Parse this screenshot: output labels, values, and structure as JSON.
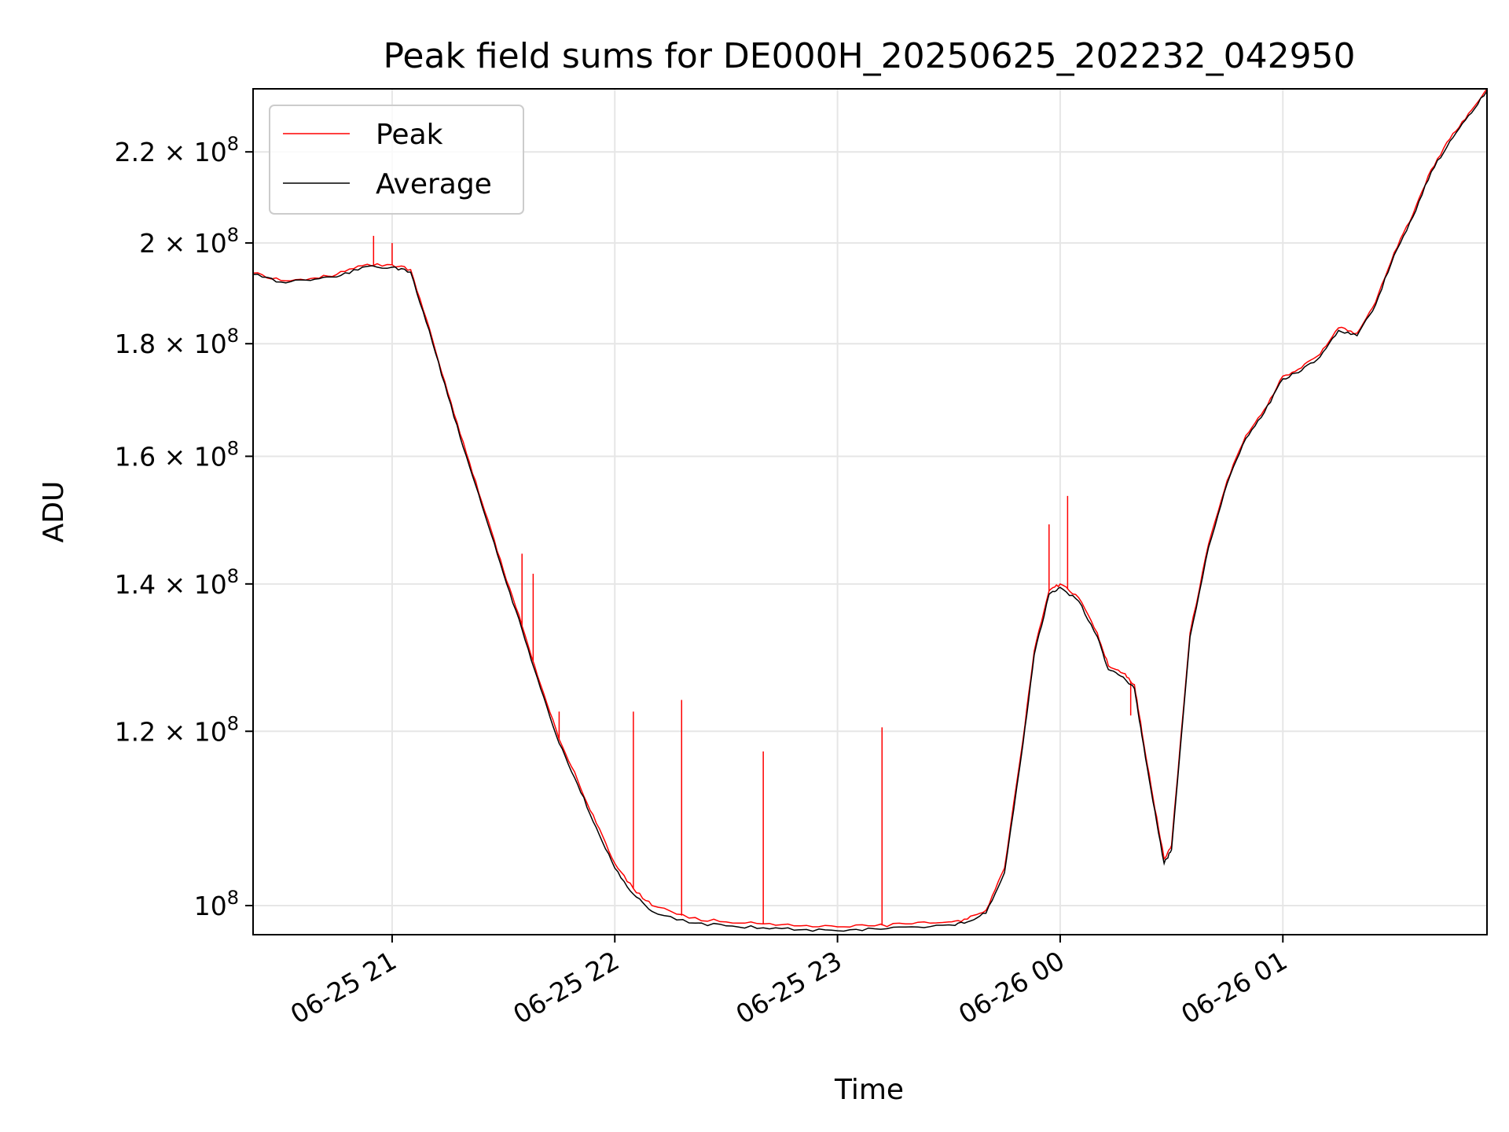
{
  "chart_data": {
    "type": "line",
    "title": "Peak field sums for DE000H_20250625_202232_042950",
    "xlabel": "Time",
    "ylabel": "ADU",
    "y_scale": "log",
    "grid": true,
    "legend_position": "upper-left",
    "xlim": [
      "2025-06-25 20:22:32",
      "2025-06-26 01:55:00"
    ],
    "ylim": [
      97000000,
      235000000
    ],
    "x_ticks": [
      {
        "value": "2025-06-25 21:00",
        "label": "06-25 21"
      },
      {
        "value": "2025-06-25 22:00",
        "label": "06-25 22"
      },
      {
        "value": "2025-06-25 23:00",
        "label": "06-25 23"
      },
      {
        "value": "2025-06-26 00:00",
        "label": "06-26 00"
      },
      {
        "value": "2025-06-26 01:00",
        "label": "06-26 01"
      }
    ],
    "y_ticks": [
      {
        "value": 100000000,
        "label_mantissa": "",
        "label_base": "10",
        "label_exp": "8"
      },
      {
        "value": 120000000,
        "label_mantissa": "1.2 × ",
        "label_base": "10",
        "label_exp": "8"
      },
      {
        "value": 140000000,
        "label_mantissa": "1.4 × ",
        "label_base": "10",
        "label_exp": "8"
      },
      {
        "value": 160000000,
        "label_mantissa": "1.6 × ",
        "label_base": "10",
        "label_exp": "8"
      },
      {
        "value": 180000000,
        "label_mantissa": "1.8 × ",
        "label_base": "10",
        "label_exp": "8"
      },
      {
        "value": 200000000,
        "label_mantissa": "2 × ",
        "label_base": "10",
        "label_exp": "8"
      },
      {
        "value": 220000000,
        "label_mantissa": "2.2 × ",
        "label_base": "10",
        "label_exp": "8"
      }
    ],
    "series": [
      {
        "name": "Peak",
        "color": "#ff0000",
        "x": [
          "2025-06-25 20:22:32",
          "2025-06-25 20:30",
          "2025-06-25 20:38",
          "2025-06-25 20:45",
          "2025-06-25 20:52",
          "2025-06-25 21:00",
          "2025-06-25 21:05",
          "2025-06-25 21:10",
          "2025-06-25 21:15",
          "2025-06-25 21:20",
          "2025-06-25 21:25",
          "2025-06-25 21:30",
          "2025-06-25 21:35",
          "2025-06-25 21:40",
          "2025-06-25 21:45",
          "2025-06-25 21:50",
          "2025-06-25 21:55",
          "2025-06-25 22:00",
          "2025-06-25 22:05",
          "2025-06-25 22:10",
          "2025-06-25 22:20",
          "2025-06-25 22:30",
          "2025-06-25 22:40",
          "2025-06-25 22:50",
          "2025-06-25 23:00",
          "2025-06-25 23:10",
          "2025-06-25 23:20",
          "2025-06-25 23:30",
          "2025-06-25 23:35",
          "2025-06-25 23:40",
          "2025-06-25 23:45",
          "2025-06-25 23:50",
          "2025-06-25 23:53",
          "2025-06-25 23:57",
          "2025-06-26 00:00",
          "2025-06-26 00:05",
          "2025-06-26 00:10",
          "2025-06-26 00:13",
          "2025-06-26 00:17",
          "2025-06-26 00:20",
          "2025-06-26 00:22",
          "2025-06-26 00:25",
          "2025-06-26 00:28",
          "2025-06-26 00:30",
          "2025-06-26 00:35",
          "2025-06-26 00:40",
          "2025-06-26 00:45",
          "2025-06-26 00:50",
          "2025-06-26 00:55",
          "2025-06-26 01:00",
          "2025-06-26 01:05",
          "2025-06-26 01:10",
          "2025-06-26 01:15",
          "2025-06-26 01:20",
          "2025-06-26 01:25",
          "2025-06-26 01:30",
          "2025-06-26 01:35",
          "2025-06-26 01:40",
          "2025-06-26 01:45",
          "2025-06-26 01:50",
          "2025-06-26 01:55"
        ],
        "values": [
          193800000,
          192300000,
          192700000,
          193500000,
          195300000,
          195500000,
          194500000,
          183000000,
          171000000,
          160500000,
          151000000,
          142000000,
          134000000,
          126000000,
          119000000,
          114000000,
          109000000,
          104500000,
          101800000,
          100000000,
          98700000,
          98300000,
          98100000,
          97900000,
          97800000,
          97900000,
          98100000,
          98300000,
          98600000,
          99500000,
          104000000,
          119000000,
          130500000,
          139000000,
          140000000,
          138000000,
          133000000,
          128500000,
          127500000,
          126000000,
          120000000,
          112000000,
          105000000,
          106500000,
          133000000,
          146000000,
          156000000,
          163500000,
          168000000,
          174000000,
          175500000,
          178000000,
          183000000,
          182000000,
          188000000,
          198000000,
          206000000,
          216000000,
          223000000,
          229000000,
          235000000
        ],
        "spikes": [
          {
            "x": "2025-06-25 20:55",
            "value": 201500000
          },
          {
            "x": "2025-06-25 21:00",
            "value": 200000000
          },
          {
            "x": "2025-06-25 21:35",
            "value": 144500000
          },
          {
            "x": "2025-06-25 21:38",
            "value": 141500000
          },
          {
            "x": "2025-06-25 21:45",
            "value": 122500000
          },
          {
            "x": "2025-06-25 22:05",
            "value": 122500000
          },
          {
            "x": "2025-06-25 22:18",
            "value": 124000000
          },
          {
            "x": "2025-06-25 22:40",
            "value": 117500000
          },
          {
            "x": "2025-06-25 23:12",
            "value": 120500000
          },
          {
            "x": "2025-06-25 23:57",
            "value": 149000000
          },
          {
            "x": "2025-06-26 00:02",
            "value": 153500000
          },
          {
            "x": "2025-06-26 00:19",
            "value": 122000000
          }
        ]
      },
      {
        "name": "Average",
        "color": "#000000",
        "x": [
          "2025-06-25 20:22:32",
          "2025-06-25 20:30",
          "2025-06-25 20:38",
          "2025-06-25 20:45",
          "2025-06-25 20:52",
          "2025-06-25 21:00",
          "2025-06-25 21:05",
          "2025-06-25 21:10",
          "2025-06-25 21:15",
          "2025-06-25 21:20",
          "2025-06-25 21:25",
          "2025-06-25 21:30",
          "2025-06-25 21:35",
          "2025-06-25 21:40",
          "2025-06-25 21:45",
          "2025-06-25 21:50",
          "2025-06-25 21:55",
          "2025-06-25 22:00",
          "2025-06-25 22:05",
          "2025-06-25 22:10",
          "2025-06-25 22:20",
          "2025-06-25 22:30",
          "2025-06-25 22:40",
          "2025-06-25 22:50",
          "2025-06-25 23:00",
          "2025-06-25 23:10",
          "2025-06-25 23:20",
          "2025-06-25 23:30",
          "2025-06-25 23:35",
          "2025-06-25 23:40",
          "2025-06-25 23:45",
          "2025-06-25 23:50",
          "2025-06-25 23:53",
          "2025-06-25 23:57",
          "2025-06-26 00:00",
          "2025-06-26 00:05",
          "2025-06-26 00:10",
          "2025-06-26 00:13",
          "2025-06-26 00:17",
          "2025-06-26 00:20",
          "2025-06-26 00:22",
          "2025-06-26 00:25",
          "2025-06-26 00:28",
          "2025-06-26 00:30",
          "2025-06-26 00:35",
          "2025-06-26 00:40",
          "2025-06-26 00:45",
          "2025-06-26 00:50",
          "2025-06-26 00:55",
          "2025-06-26 01:00",
          "2025-06-26 01:05",
          "2025-06-26 01:10",
          "2025-06-26 01:15",
          "2025-06-26 01:20",
          "2025-06-26 01:25",
          "2025-06-26 01:30",
          "2025-06-26 01:35",
          "2025-06-26 01:40",
          "2025-06-26 01:45",
          "2025-06-26 01:50",
          "2025-06-26 01:55"
        ],
        "values": [
          193500000,
          192000000,
          192300000,
          193000000,
          195000000,
          195000000,
          194000000,
          182500000,
          170500000,
          160000000,
          150500000,
          141500000,
          133500000,
          125500000,
          118500000,
          113500000,
          108500000,
          104000000,
          101200000,
          99400000,
          98200000,
          97900000,
          97700000,
          97500000,
          97400000,
          97600000,
          97800000,
          98000000,
          98300000,
          99200000,
          103500000,
          118500000,
          130000000,
          138500000,
          139500000,
          137500000,
          132500000,
          128000000,
          127000000,
          125500000,
          119500000,
          111500000,
          104500000,
          106000000,
          132500000,
          145500000,
          155500000,
          163000000,
          167500000,
          173500000,
          175000000,
          177500000,
          182500000,
          181500000,
          187500000,
          197500000,
          205500000,
          215500000,
          222500000,
          228500000,
          234500000
        ]
      }
    ]
  }
}
